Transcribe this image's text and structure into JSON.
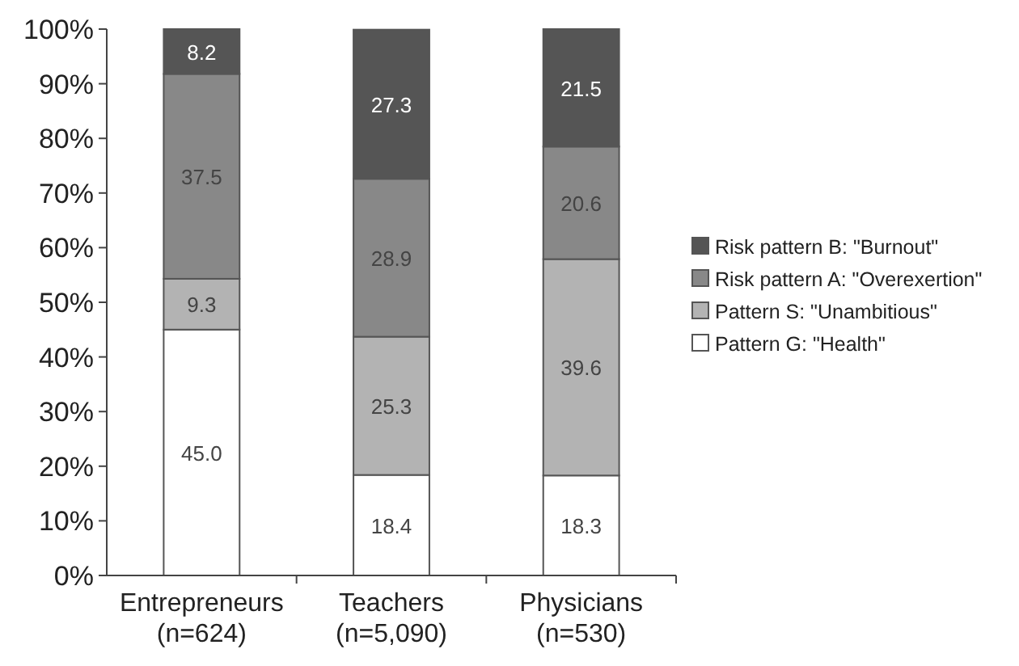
{
  "chart_data": {
    "type": "bar",
    "stacked": true,
    "categories": [
      "Entrepreneurs\n(n=624)",
      "Teachers\n(n=5,090)",
      "Physicians\n(n=530)"
    ],
    "series": [
      {
        "name": "Pattern G: \"Health\"",
        "color": "#ffffff",
        "values": [
          45.0,
          18.4,
          18.3
        ],
        "value_labels": [
          "45.0",
          "18.4",
          "18.3"
        ]
      },
      {
        "name": "Pattern S: \"Unambitious\"",
        "color": "#b3b3b3",
        "values": [
          9.3,
          25.3,
          39.6
        ],
        "value_labels": [
          "9.3",
          "25.3",
          "39.6"
        ]
      },
      {
        "name": "Risk pattern A: \"Overexertion\"",
        "color": "#888888",
        "values": [
          37.5,
          28.9,
          20.6
        ],
        "value_labels": [
          "37.5",
          "28.9",
          "20.6"
        ]
      },
      {
        "name": "Risk pattern B: \"Burnout\"",
        "color": "#555555",
        "values": [
          8.2,
          27.3,
          21.5
        ],
        "value_labels": [
          "8.2",
          "27.3",
          "21.5"
        ]
      }
    ],
    "ylim": [
      0,
      100
    ],
    "yticks": [
      {
        "value": 0,
        "label": "0%"
      },
      {
        "value": 10,
        "label": "10%"
      },
      {
        "value": 20,
        "label": "20%"
      },
      {
        "value": 30,
        "label": "30%"
      },
      {
        "value": 40,
        "label": "40%"
      },
      {
        "value": 50,
        "label": "50%"
      },
      {
        "value": 60,
        "label": "60%"
      },
      {
        "value": 70,
        "label": "70%"
      },
      {
        "value": 80,
        "label": "80%"
      },
      {
        "value": 90,
        "label": "90%"
      },
      {
        "value": 100,
        "label": "100%"
      }
    ],
    "legend": "right",
    "grid": false
  }
}
